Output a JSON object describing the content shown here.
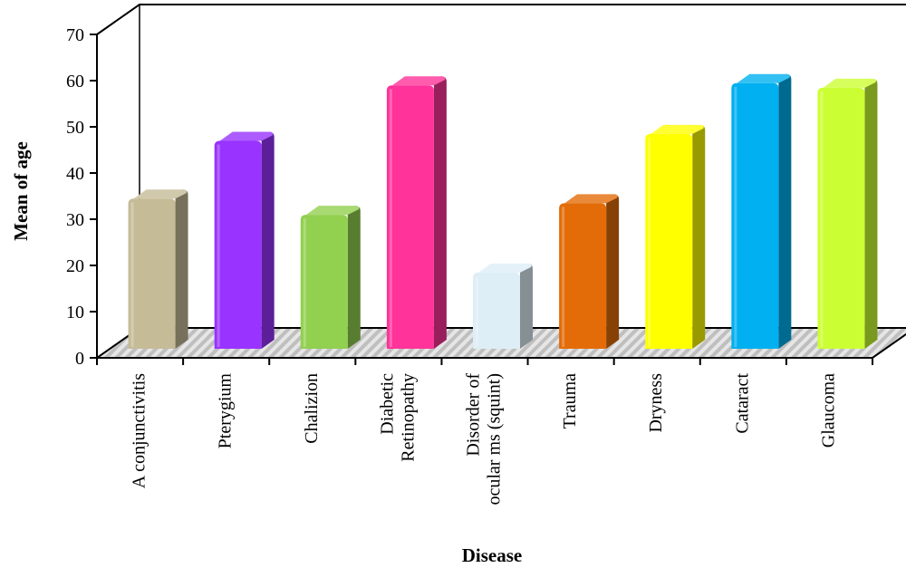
{
  "chart_data": {
    "type": "bar",
    "title": "",
    "xlabel": "Disease",
    "ylabel": "Mean of age",
    "ylim": [
      0,
      70
    ],
    "yticks": [
      "0",
      "10",
      "20",
      "30",
      "40",
      "50",
      "60",
      "70"
    ],
    "grid": false,
    "legend": "none",
    "categories": [
      [
        "A conjunctivitis"
      ],
      [
        "Pterygium"
      ],
      [
        "Chalizion"
      ],
      [
        "Diabetic",
        "Retinopathy"
      ],
      [
        "Disorder of",
        "ocular ms (squint)"
      ],
      [
        "Trauma"
      ],
      [
        "Dryness"
      ],
      [
        "Cataract"
      ],
      [
        "Glaucoma"
      ]
    ],
    "values": [
      32.5,
      45,
      29,
      57,
      16.5,
      31.5,
      46.5,
      57.5,
      56.5
    ],
    "colors": [
      "#c6bb97",
      "#9933ff",
      "#92d050",
      "#ff3399",
      "#ddeef6",
      "#e36c09",
      "#ffff00",
      "#00b0f0",
      "#ccff33"
    ]
  }
}
